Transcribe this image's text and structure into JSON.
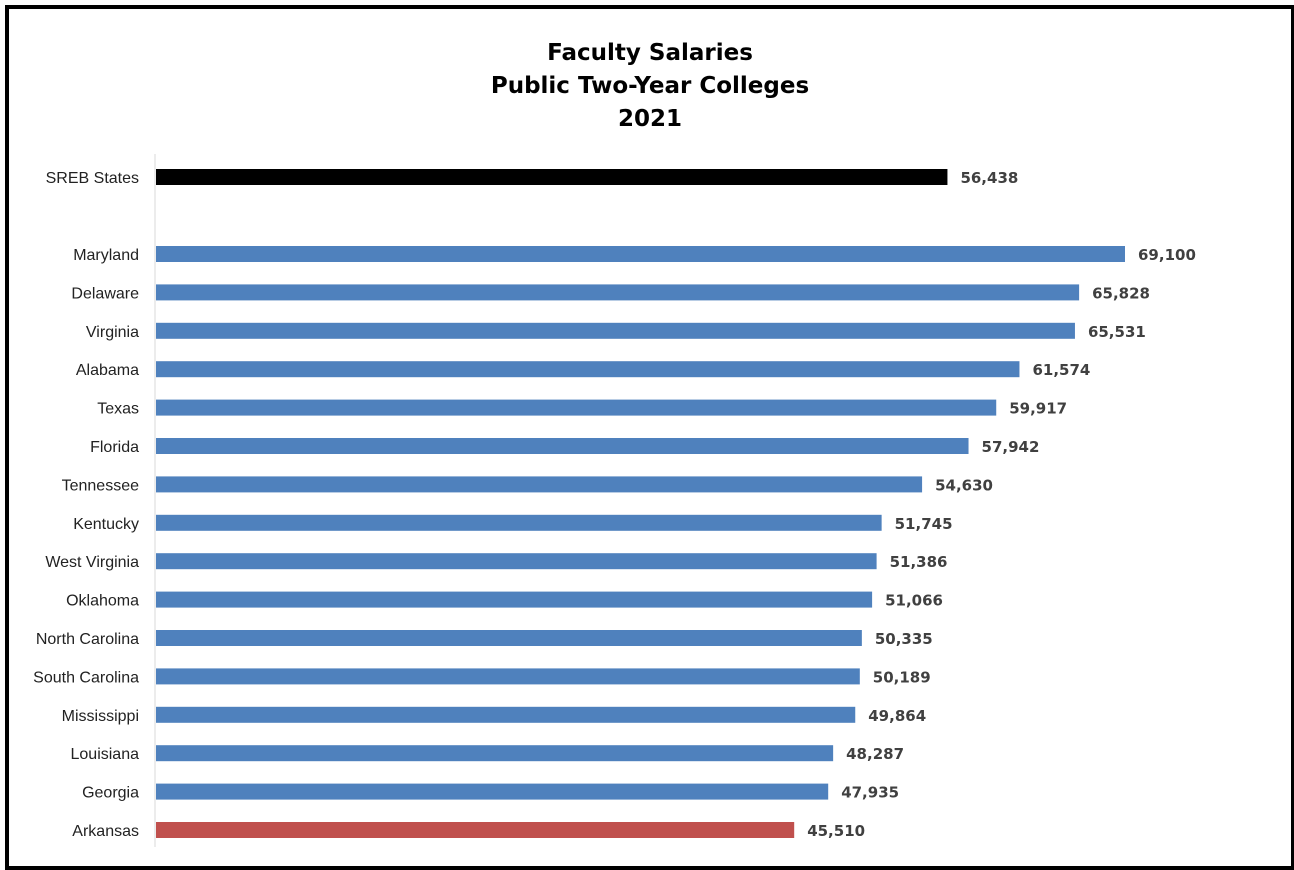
{
  "chart_data": {
    "type": "bar",
    "orientation": "horizontal",
    "title": [
      "Faculty Salaries",
      "Public Two-Year Colleges",
      "2021"
    ],
    "xlabel": "",
    "ylabel": "",
    "xlim": [
      0,
      69100
    ],
    "grid": false,
    "legend": "none",
    "categories": [
      "SREB States",
      "Maryland",
      "Delaware",
      "Virginia",
      "Alabama",
      "Texas",
      "Florida",
      "Tennessee",
      "Kentucky",
      "West Virginia",
      "Oklahoma",
      "North Carolina",
      "South Carolina",
      "Mississippi",
      "Louisiana",
      "Georgia",
      "Arkansas"
    ],
    "values": [
      56438,
      69100,
      65828,
      65531,
      61574,
      59917,
      57942,
      54630,
      51745,
      51386,
      51066,
      50335,
      50189,
      49864,
      48287,
      47935,
      45510
    ],
    "value_labels": [
      "56,438",
      "69,100",
      "65,828",
      "65,531",
      "61,574",
      "59,917",
      "57,942",
      "54,630",
      "51,745",
      "51,386",
      "51,066",
      "50,335",
      "50,189",
      "49,864",
      "48,287",
      "47,935",
      "45,510"
    ],
    "colors": [
      "#000000",
      "#4f81bd",
      "#4f81bd",
      "#4f81bd",
      "#4f81bd",
      "#4f81bd",
      "#4f81bd",
      "#4f81bd",
      "#4f81bd",
      "#4f81bd",
      "#4f81bd",
      "#4f81bd",
      "#4f81bd",
      "#4f81bd",
      "#4f81bd",
      "#4f81bd",
      "#c0504d"
    ]
  }
}
